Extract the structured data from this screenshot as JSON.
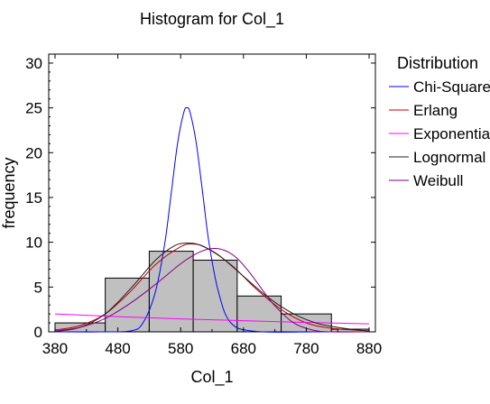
{
  "window": {
    "title": "Histogram for Col_1"
  },
  "chart_data": {
    "type": "bar",
    "title": "Histogram for Col_1",
    "xlabel": "Col_1",
    "ylabel": "frequency",
    "xlim": [
      370,
      890
    ],
    "ylim": [
      0,
      31
    ],
    "x_ticks": [
      380,
      480,
      580,
      680,
      780,
      880
    ],
    "y_ticks": [
      0,
      5,
      10,
      15,
      20,
      25,
      30
    ],
    "grid": false,
    "legend_position": "right",
    "histogram_color": "#c0c0c0",
    "bins": [
      {
        "x0": 380,
        "x1": 460,
        "count": 1
      },
      {
        "x0": 460,
        "x1": 530,
        "count": 6
      },
      {
        "x0": 530,
        "x1": 600,
        "count": 9
      },
      {
        "x0": 600,
        "x1": 670,
        "count": 8
      },
      {
        "x0": 670,
        "x1": 740,
        "count": 4
      },
      {
        "x0": 740,
        "x1": 820,
        "count": 2
      },
      {
        "x0": 820,
        "x1": 880,
        "count": 0.3
      }
    ],
    "legend_title": "Distribution",
    "series": [
      {
        "name": "Chi-Squared",
        "color": "#0000ff",
        "x": [
          380,
          450,
          500,
          520,
          540,
          555,
          565,
          575,
          585,
          590,
          595,
          605,
          615,
          625,
          640,
          660,
          700,
          800,
          880
        ],
        "y": [
          0,
          0,
          0.1,
          1,
          4.5,
          10,
          15.5,
          21,
          24.5,
          25,
          24.5,
          21,
          15.5,
          10,
          4.5,
          1,
          0.05,
          0,
          0
        ]
      },
      {
        "name": "Erlang",
        "color": "#c00000",
        "x": [
          380,
          420,
          460,
          500,
          540,
          580,
          600,
          620,
          660,
          700,
          740,
          780,
          820,
          880
        ],
        "y": [
          0.2,
          0.7,
          2,
          4.5,
          7.5,
          9.5,
          9.8,
          9.4,
          7.5,
          4.8,
          2.5,
          1,
          0.4,
          0.1
        ]
      },
      {
        "name": "Exponential",
        "color": "#ff00ff",
        "x": [
          380,
          480,
          580,
          680,
          780,
          880
        ],
        "y": [
          2,
          1.7,
          1.45,
          1.25,
          1.05,
          0.9
        ]
      },
      {
        "name": "Lognormal",
        "color": "#202020",
        "x": [
          380,
          420,
          460,
          500,
          540,
          570,
          590,
          610,
          640,
          680,
          720,
          760,
          800,
          850,
          880
        ],
        "y": [
          0.05,
          0.5,
          2,
          4.8,
          8,
          9.6,
          9.9,
          9.7,
          8.6,
          6.2,
          3.8,
          2,
          0.9,
          0.3,
          0.1
        ]
      },
      {
        "name": "Weibull",
        "color": "#800080",
        "x": [
          380,
          420,
          460,
          500,
          540,
          580,
          610,
          630,
          650,
          670,
          690,
          710,
          730,
          760,
          790,
          820,
          880
        ],
        "y": [
          0.1,
          0.5,
          1.5,
          3.2,
          5.3,
          7.6,
          8.9,
          9.3,
          9.1,
          8.2,
          6.6,
          4.7,
          2.9,
          1,
          0.2,
          0,
          0
        ]
      }
    ]
  }
}
